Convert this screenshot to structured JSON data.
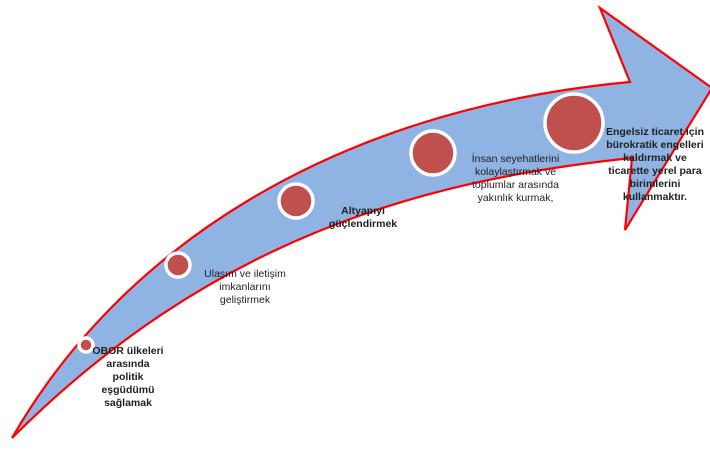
{
  "colors": {
    "arrow_fill": "#8fb3e3",
    "arrow_outline": "#ff0000",
    "dot_fill": "#c0504d",
    "dot_ring": "#ffffff"
  },
  "milestones": [
    {
      "text": "OBOR ülkeleri\narasında\npolitik\neşgüdümü\nsağlamak",
      "bold": true
    },
    {
      "text": "Ulaşım  ve iletişim\nimkanlarını\ngeliştirmek",
      "bold": false
    },
    {
      "text": "Altyapıyı\ngüçlendirmek",
      "bold": true
    },
    {
      "text": "İnsan seyehatlerini\nkolaylaştırmak  ve\ntoplumlar  arasında\nyakınlık kurmak,",
      "bold": false
    },
    {
      "text": "Engelsiz  ticaret için\nbürokratik  engelleri\nkaldırmak  ve\nticarette  yerel para\nbirimlerini\nkullanmaktır.",
      "bold": true
    }
  ]
}
